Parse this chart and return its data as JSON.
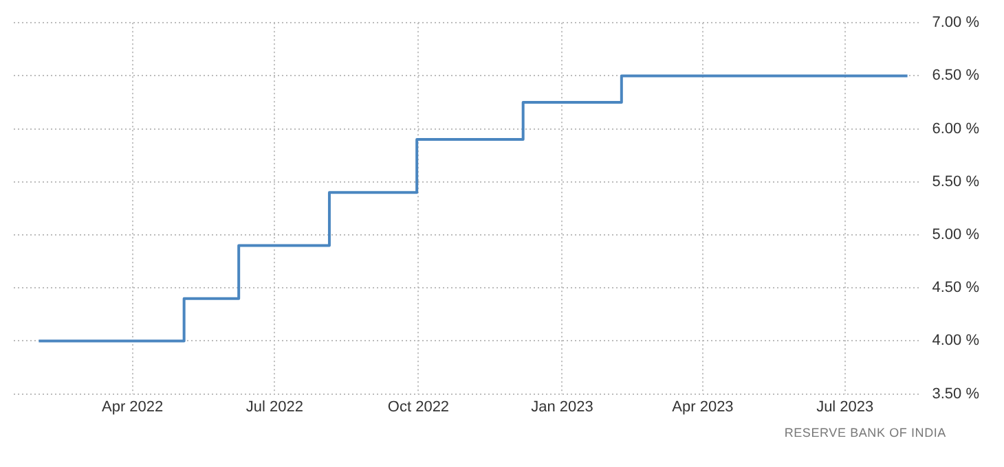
{
  "chart_data": {
    "type": "step",
    "x": [
      "2022-01-31",
      "2022-05-04",
      "2022-06-08",
      "2022-08-05",
      "2022-09-30",
      "2022-12-07",
      "2023-02-08",
      "2023-08-10"
    ],
    "values": [
      4.0,
      4.4,
      4.9,
      5.4,
      5.9,
      6.25,
      6.5,
      6.5
    ],
    "color": "#4a86c0",
    "xlim": [
      "2022-01-15",
      "2023-08-17"
    ],
    "xticks": [
      {
        "value": "2022-04",
        "label": "Apr 2022"
      },
      {
        "value": "2022-07",
        "label": "Jul 2022"
      },
      {
        "value": "2022-10",
        "label": "Oct 2022"
      },
      {
        "value": "2023-01",
        "label": "Jan 2023"
      },
      {
        "value": "2023-04",
        "label": "Apr 2023"
      },
      {
        "value": "2023-07",
        "label": "Jul 2023"
      }
    ],
    "ylim": [
      3.5,
      7.0
    ],
    "yticks": [
      {
        "value": 3.5,
        "label": "3.50 %"
      },
      {
        "value": 4.0,
        "label": "4.00 %"
      },
      {
        "value": 4.5,
        "label": "4.50 %"
      },
      {
        "value": 5.0,
        "label": "5.00 %"
      },
      {
        "value": 5.5,
        "label": "5.50 %"
      },
      {
        "value": 6.0,
        "label": "6.00 %"
      },
      {
        "value": 6.5,
        "label": "6.50 %"
      },
      {
        "value": 7.0,
        "label": "7.00 %"
      }
    ],
    "grid": true,
    "legend": false,
    "marker": "none",
    "line_style": "solid",
    "annotations": [
      "RESERVE BANK OF INDIA"
    ]
  }
}
